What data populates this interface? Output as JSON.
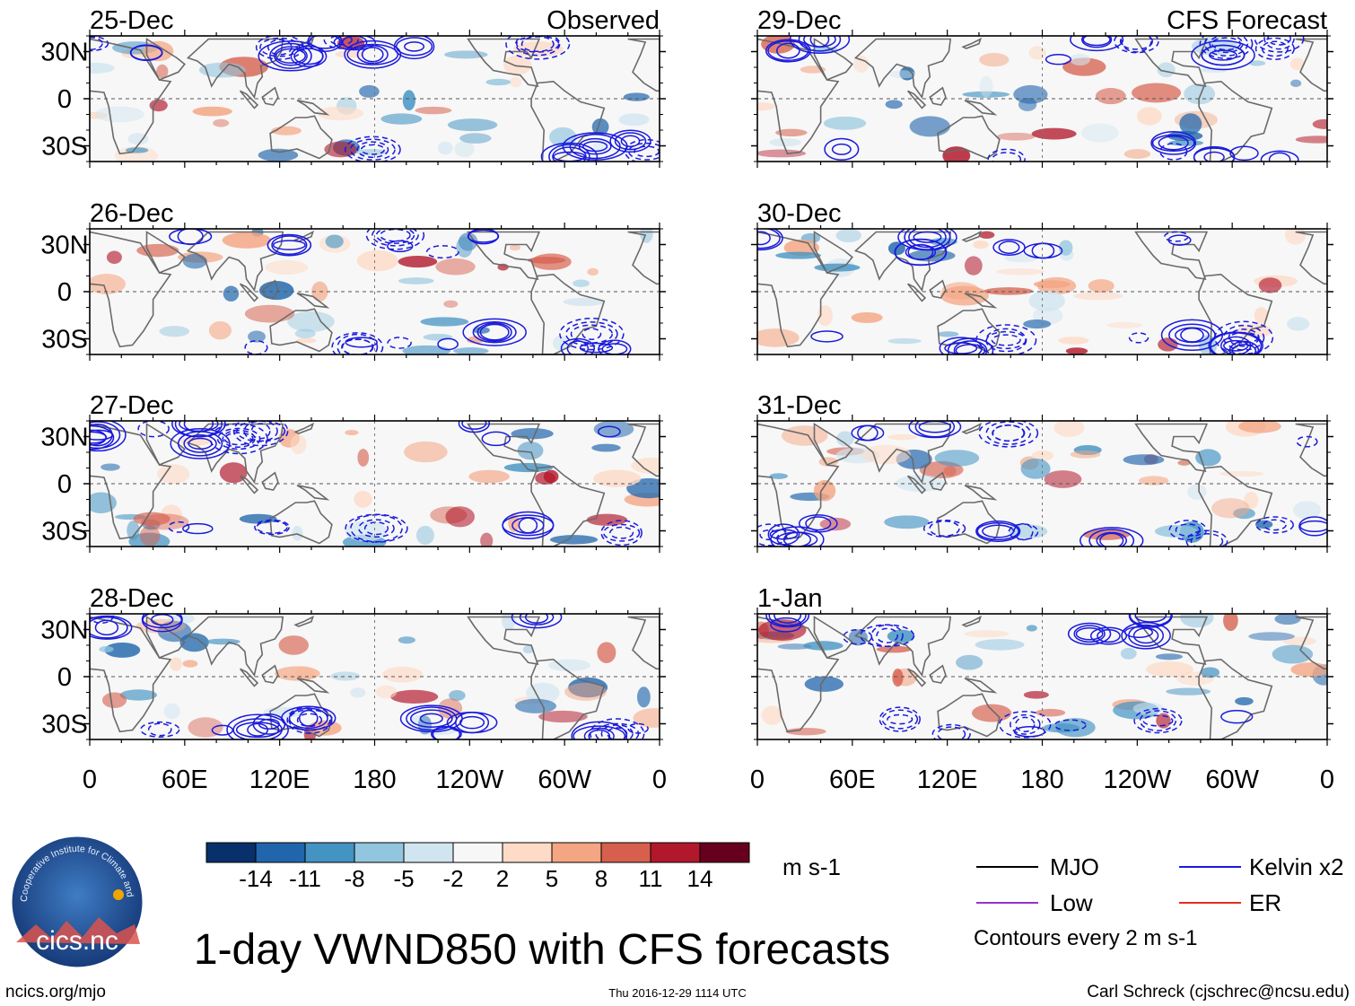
{
  "figure": {
    "title": "1-day VWND850 with CFS forecasts",
    "website": "ncics.org/mjo",
    "timestamp": "Thu 2016-12-29 1114 UTC",
    "author": "Carl Schreck (cjschrec@ncsu.edu)",
    "logo_text": "cics.nc",
    "logo_ring_text": "Cooperative Institute for Climate and Satellites",
    "observed_label": "Observed",
    "forecast_label": "CFS Forecast"
  },
  "chart_data": {
    "type": "heatmap",
    "variable": "850-hPa meridional wind anomaly",
    "panels": [
      {
        "date": "25-Dec",
        "source": "Observed"
      },
      {
        "date": "26-Dec",
        "source": "Observed"
      },
      {
        "date": "27-Dec",
        "source": "Observed"
      },
      {
        "date": "28-Dec",
        "source": "Observed"
      },
      {
        "date": "29-Dec",
        "source": "CFS Forecast"
      },
      {
        "date": "30-Dec",
        "source": "CFS Forecast"
      },
      {
        "date": "31-Dec",
        "source": "CFS Forecast"
      },
      {
        "date": "1-Jan",
        "source": "CFS Forecast"
      }
    ],
    "lat_ticks": [
      "30N",
      "0",
      "30S"
    ],
    "lat_values": [
      30,
      0,
      -30
    ],
    "lat_range": [
      -40,
      40
    ],
    "lon_ticks": [
      "0",
      "60E",
      "120E",
      "180",
      "120W",
      "60W",
      "0"
    ],
    "lon_values": [
      0,
      60,
      120,
      180,
      240,
      300,
      360
    ],
    "lon_range": [
      0,
      360
    ],
    "colorbar": {
      "levels": [
        "-14",
        "-11",
        "-8",
        "-5",
        "-2",
        "2",
        "5",
        "8",
        "11",
        "14"
      ],
      "colors": [
        "#08306b",
        "#2166ac",
        "#4393c3",
        "#92c5de",
        "#d1e5f0",
        "#f7f7f7",
        "#fddbc7",
        "#f4a582",
        "#d6604d",
        "#b2182b",
        "#67001f"
      ],
      "units": "m s-1"
    },
    "legend": [
      {
        "label": "MJO",
        "color": "#000000"
      },
      {
        "label": "Kelvin x2",
        "color": "#1a1adc"
      },
      {
        "label": "Low",
        "color": "#9932cc"
      },
      {
        "label": "ER",
        "color": "#e0301e"
      }
    ],
    "contour_note": "Contours every 2 m s-1"
  }
}
